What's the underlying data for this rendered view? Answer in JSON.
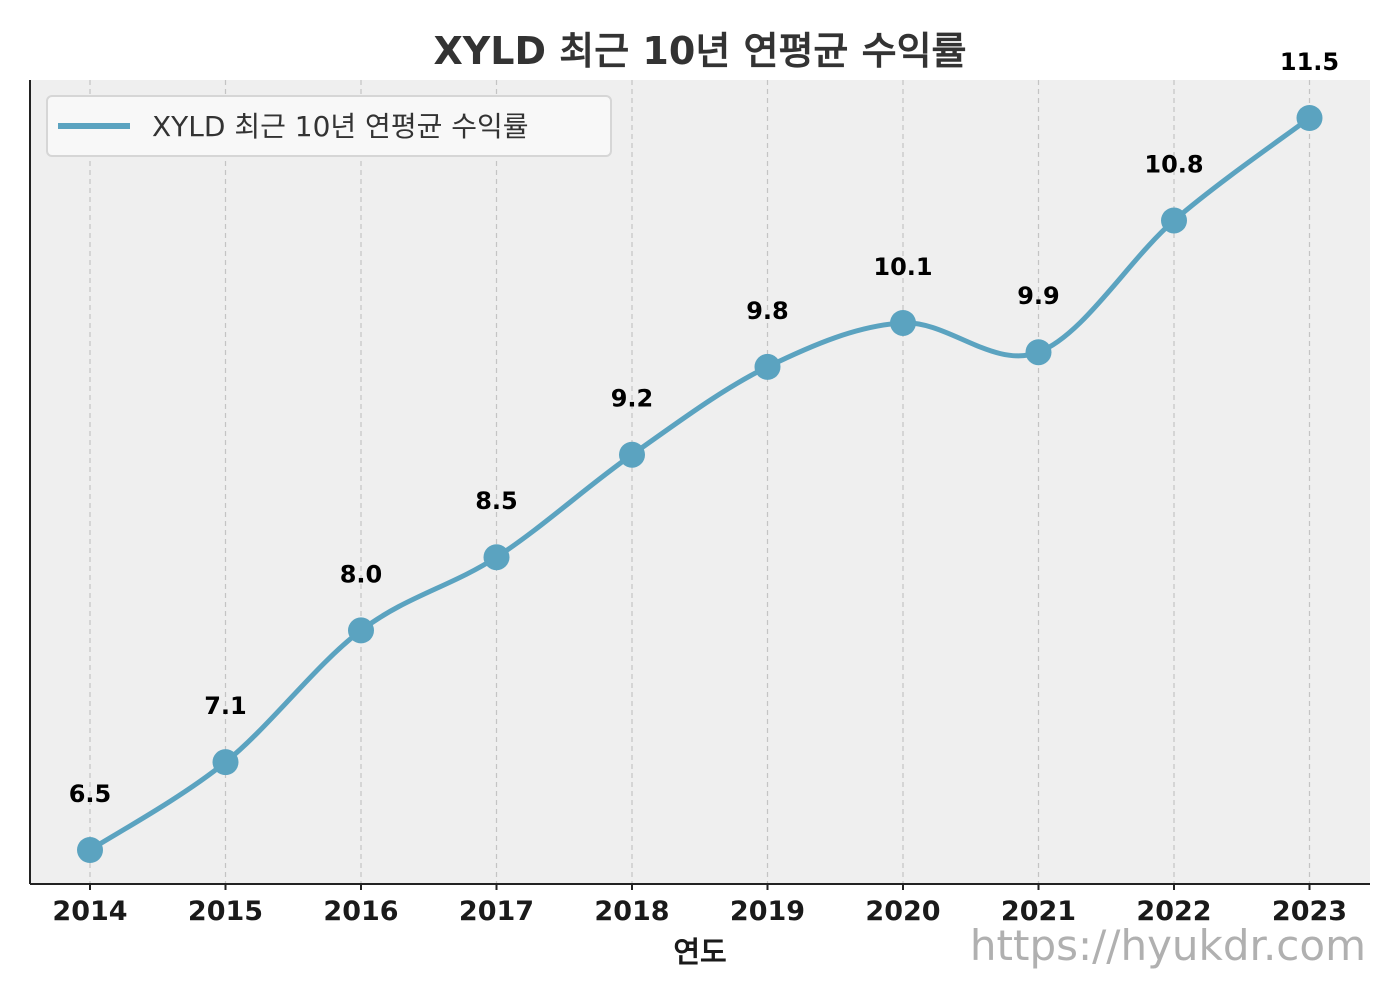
{
  "chart_data": {
    "type": "line",
    "title": "XYLD 최근 10년 연평균 수익률",
    "xlabel": "연도",
    "ylabel": "",
    "categories": [
      "2014",
      "2015",
      "2016",
      "2017",
      "2018",
      "2019",
      "2020",
      "2021",
      "2022",
      "2023"
    ],
    "series": [
      {
        "name": "XYLD 최근 10년 연평균 수익률",
        "values": [
          6.5,
          7.1,
          8.0,
          8.5,
          9.2,
          9.8,
          10.1,
          9.9,
          10.8,
          11.5
        ],
        "color": "#5BA3C0"
      }
    ],
    "data_labels": [
      "6.5",
      "7.1",
      "8.0",
      "8.5",
      "9.2",
      "9.8",
      "10.1",
      "9.9",
      "10.8",
      "11.5"
    ],
    "ylim": [
      6.1,
      11.6
    ],
    "grid": "x-dashed",
    "legend_position": "top-left",
    "smooth": true
  },
  "watermark": "https://hyukdr.com",
  "colors": {
    "plot_background": "#EFEFEF",
    "line": "#5BA3C0",
    "grid": "#C4C4C4",
    "axis": "#222222"
  }
}
